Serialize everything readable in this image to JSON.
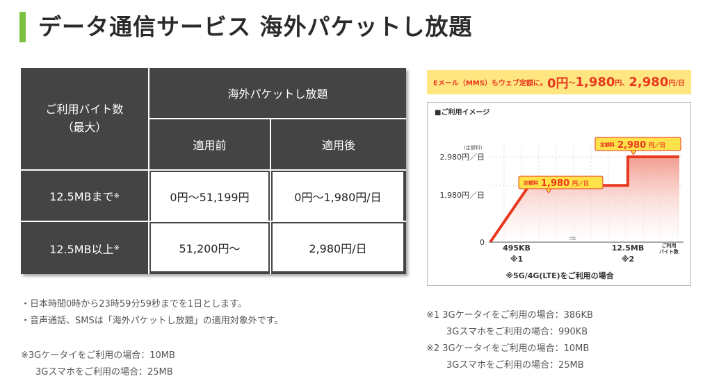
{
  "title": "データ通信サービス 海外パケットし放題",
  "table": {
    "header_left": "ご利用バイト数",
    "header_left_sub": "（最大）",
    "header_top": "海外パケットし放題",
    "col_before": "適用前",
    "col_after": "適用後",
    "rows": [
      {
        "label": "12.5MBまで",
        "mark": "※",
        "before": "0円〜51,199円",
        "after": "0円〜1,980円/日"
      },
      {
        "label": "12.5MB以上",
        "mark": "※",
        "before": "51,200円〜",
        "after": "2,980円/日"
      }
    ]
  },
  "banner": {
    "part1": "Eメール（MMS）もウェブ定額に。",
    "v0": "0円",
    "sep1": "〜",
    "v1": "1,980",
    "unit1": "円",
    "sep2": "、",
    "v2": "2,980",
    "unit2": "円/日"
  },
  "image_title": "■ご利用イメージ",
  "chart_data": {
    "type": "line",
    "title": "■ご利用イメージ",
    "ylabel_top": "(定額料)",
    "y_ticks": [
      "2,980円／日",
      "1,980円／日",
      "0"
    ],
    "x_ticks": [
      {
        "label": "495KB",
        "mark": "※1"
      },
      {
        "label": "12.5MB",
        "mark": "※2"
      }
    ],
    "x_end_label_1": "ご利用",
    "x_end_label_2": "バイト数",
    "callout1_small": "定額料",
    "callout1_value": "1,980",
    "callout1_unit": "円／日",
    "callout2_small": "定額料",
    "callout2_value": "2,980",
    "callout2_unit": "円／日",
    "footnote": "※5G/4G(LTE)をご利用の場合",
    "points": [
      {
        "x": "0",
        "y": 0
      },
      {
        "x": "495KB",
        "y": 1980
      },
      {
        "x": "12.5MB",
        "y": 1980
      },
      {
        "x": "12.5MB",
        "y": 2980
      },
      {
        "x": "max",
        "y": 2980
      }
    ]
  },
  "notes_left": [
    "・日本時間0時から23時59分59秒までを1日とします。",
    "・音声通話、SMSは「海外パケットし放題」の適用対象外です。"
  ],
  "notes_left2": [
    "※3Gケータイをご利用の場合：10MB",
    "3Gスマホをご利用の場合：25MB"
  ],
  "notes_right": [
    "※1 3Gケータイをご利用の場合：386KB",
    "3Gスマホをご利用の場合：990KB",
    "※2 3Gケータイをご利用の場合：10MB",
    "3Gスマホをご利用の場合：25MB"
  ],
  "colors": {
    "accent_green": "#7cc242",
    "accent_red": "#e8381f",
    "table_dark": "#444444",
    "banner_yellow": "#ffe680"
  }
}
